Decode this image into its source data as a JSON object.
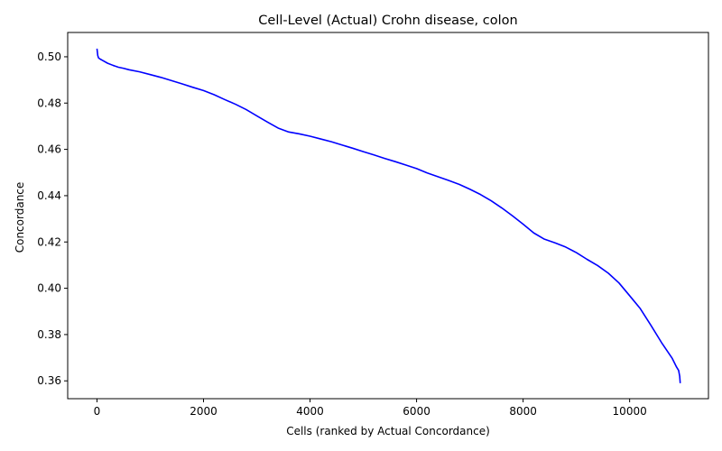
{
  "chart_data": {
    "type": "line",
    "title": "Cell-Level (Actual) Crohn disease, colon",
    "xlabel": "Cells (ranked by Actual Concordance)",
    "ylabel": "Concordance",
    "xlim": [
      -550,
      11480
    ],
    "ylim": [
      0.3523,
      0.5105
    ],
    "xticks": [
      0,
      2000,
      4000,
      6000,
      8000,
      10000
    ],
    "xtick_labels": [
      "0",
      "2000",
      "4000",
      "6000",
      "8000",
      "10000"
    ],
    "yticks": [
      0.36,
      0.38,
      0.4,
      0.42,
      0.44,
      0.46,
      0.48,
      0.5
    ],
    "ytick_labels": [
      "0.36",
      "0.38",
      "0.40",
      "0.42",
      "0.44",
      "0.46",
      "0.48",
      "0.50"
    ],
    "grid": false,
    "series": [
      {
        "color": "#0000ff",
        "x": [
          0,
          15,
          30,
          60,
          100,
          200,
          300,
          400,
          500,
          600,
          800,
          1000,
          1200,
          1400,
          1600,
          1800,
          2000,
          2200,
          2400,
          2600,
          2800,
          3000,
          3200,
          3400,
          3600,
          3800,
          4000,
          4200,
          4400,
          4600,
          4800,
          5000,
          5200,
          5400,
          5600,
          5800,
          6000,
          6200,
          6400,
          6600,
          6800,
          7000,
          7200,
          7400,
          7600,
          7800,
          8000,
          8200,
          8400,
          8600,
          8800,
          9000,
          9200,
          9400,
          9600,
          9800,
          10000,
          10200,
          10400,
          10600,
          10800,
          10880,
          10920,
          10940,
          10950
        ],
        "values": [
          0.5035,
          0.5005,
          0.4995,
          0.499,
          0.4985,
          0.4972,
          0.4963,
          0.4955,
          0.495,
          0.4944,
          0.4935,
          0.4923,
          0.4911,
          0.4897,
          0.4883,
          0.4868,
          0.4854,
          0.4836,
          0.4815,
          0.4795,
          0.4772,
          0.4745,
          0.4718,
          0.4692,
          0.4675,
          0.4667,
          0.4657,
          0.4645,
          0.4633,
          0.4619,
          0.4605,
          0.459,
          0.4576,
          0.4561,
          0.4547,
          0.4532,
          0.4517,
          0.4498,
          0.4482,
          0.4466,
          0.4449,
          0.4428,
          0.4405,
          0.4378,
          0.4347,
          0.4313,
          0.4277,
          0.4239,
          0.4212,
          0.4196,
          0.4178,
          0.4154,
          0.4125,
          0.4098,
          0.4065,
          0.4023,
          0.3968,
          0.3912,
          0.384,
          0.3765,
          0.3697,
          0.366,
          0.3645,
          0.362,
          0.359
        ]
      }
    ]
  }
}
